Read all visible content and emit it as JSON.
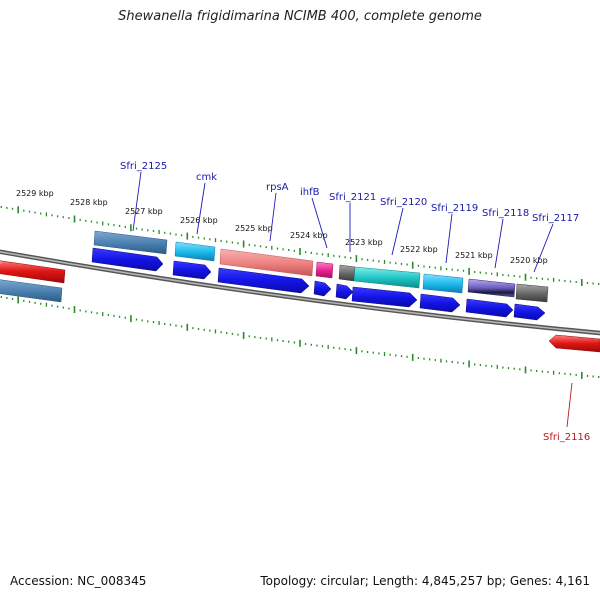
{
  "title": "Shewanella frigidimarina NCIMB 400, complete genome",
  "footer": {
    "accession": "Accession: NC_008345",
    "summary": "Topology: circular; Length: 4,845,257 bp; Genes: 4,161"
  },
  "scale": {
    "labels": [
      "2529 kbp",
      "2528 kbp",
      "2527 kbp",
      "2526 kbp",
      "2525 kbp",
      "2524 kbp",
      "2523 kbp",
      "2522 kbp",
      "2521 kbp",
      "2520 kbp"
    ]
  },
  "genes": {
    "labels": [
      "Sfri_2125",
      "cmk",
      "rpsA",
      "ihfB",
      "Sfri_2121",
      "Sfri_2120",
      "Sfri_2119",
      "Sfri_2118",
      "Sfri_2117",
      "Sfri_2116"
    ]
  },
  "colors": {
    "backbone": "#8a8a8a",
    "tick": "#2a8a2a",
    "cds_blue": "#1414e6",
    "steel": "#4a7fb0",
    "cyan": "#19b8e8",
    "salmon": "#ee7f7f",
    "magenta": "#e8208a",
    "teal": "#1ec2c2",
    "gray": "#666666",
    "purple": "#6b5bbf",
    "red": "#e01414"
  }
}
